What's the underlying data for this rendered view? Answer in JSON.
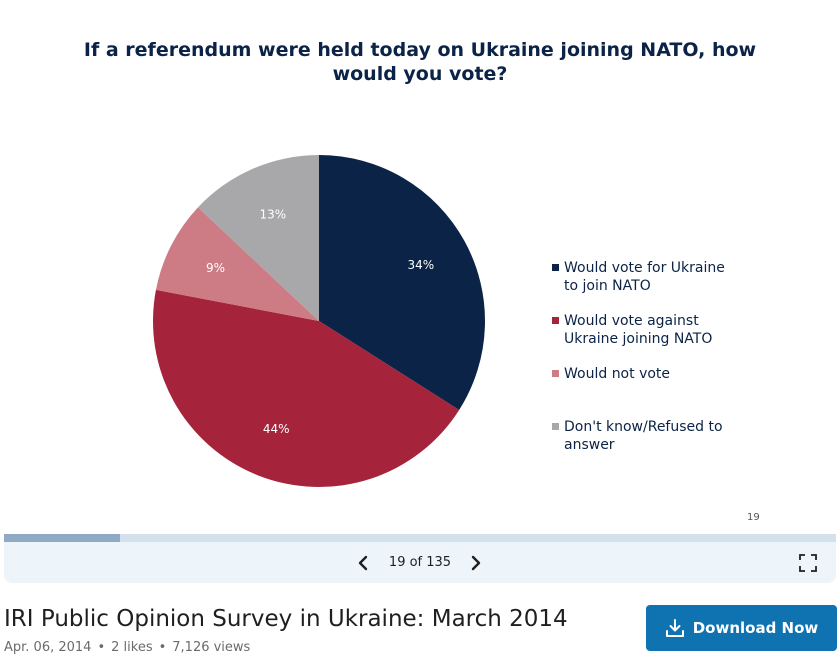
{
  "slide": {
    "title_lines": [
      "If a referendum were held today on Ukraine joining NATO, how",
      "would you vote?"
    ],
    "slide_number": "19"
  },
  "chart_data": {
    "type": "pie",
    "title": "If a referendum were held today on Ukraine joining NATO, how would you vote?",
    "categories": [
      "Would vote for Ukraine to join NATO",
      "Would vote against Ukraine joining NATO",
      "Would not vote",
      "Don't know/Refused to answer"
    ],
    "values": [
      34,
      44,
      9,
      13
    ],
    "value_labels": [
      "34%",
      "44%",
      "9%",
      "13%"
    ],
    "colors": [
      "#0b2346",
      "#a6243b",
      "#cd7b85",
      "#a8a8ab"
    ],
    "legend_position": "right",
    "legend_lines": [
      [
        "Would vote for Ukraine",
        "to join NATO"
      ],
      [
        "Would vote against",
        "Ukraine joining NATO"
      ],
      [
        "Would not vote"
      ],
      [
        "Don't know/Refused to",
        "answer"
      ]
    ]
  },
  "viewer": {
    "progress": 0.14,
    "page_indicator": "19 of 135",
    "prev_icon": "chevron-left-icon",
    "next_icon": "chevron-right-icon",
    "fullscreen_icon": "fullscreen-icon"
  },
  "document": {
    "title": "IRI Public Opinion Survey in Ukraine: March 2014",
    "date": "Apr. 06, 2014",
    "likes": "2 likes",
    "views": "7,126 views"
  },
  "download": {
    "label": "Download Now",
    "icon": "download-icon",
    "color": "#0f73b2"
  }
}
